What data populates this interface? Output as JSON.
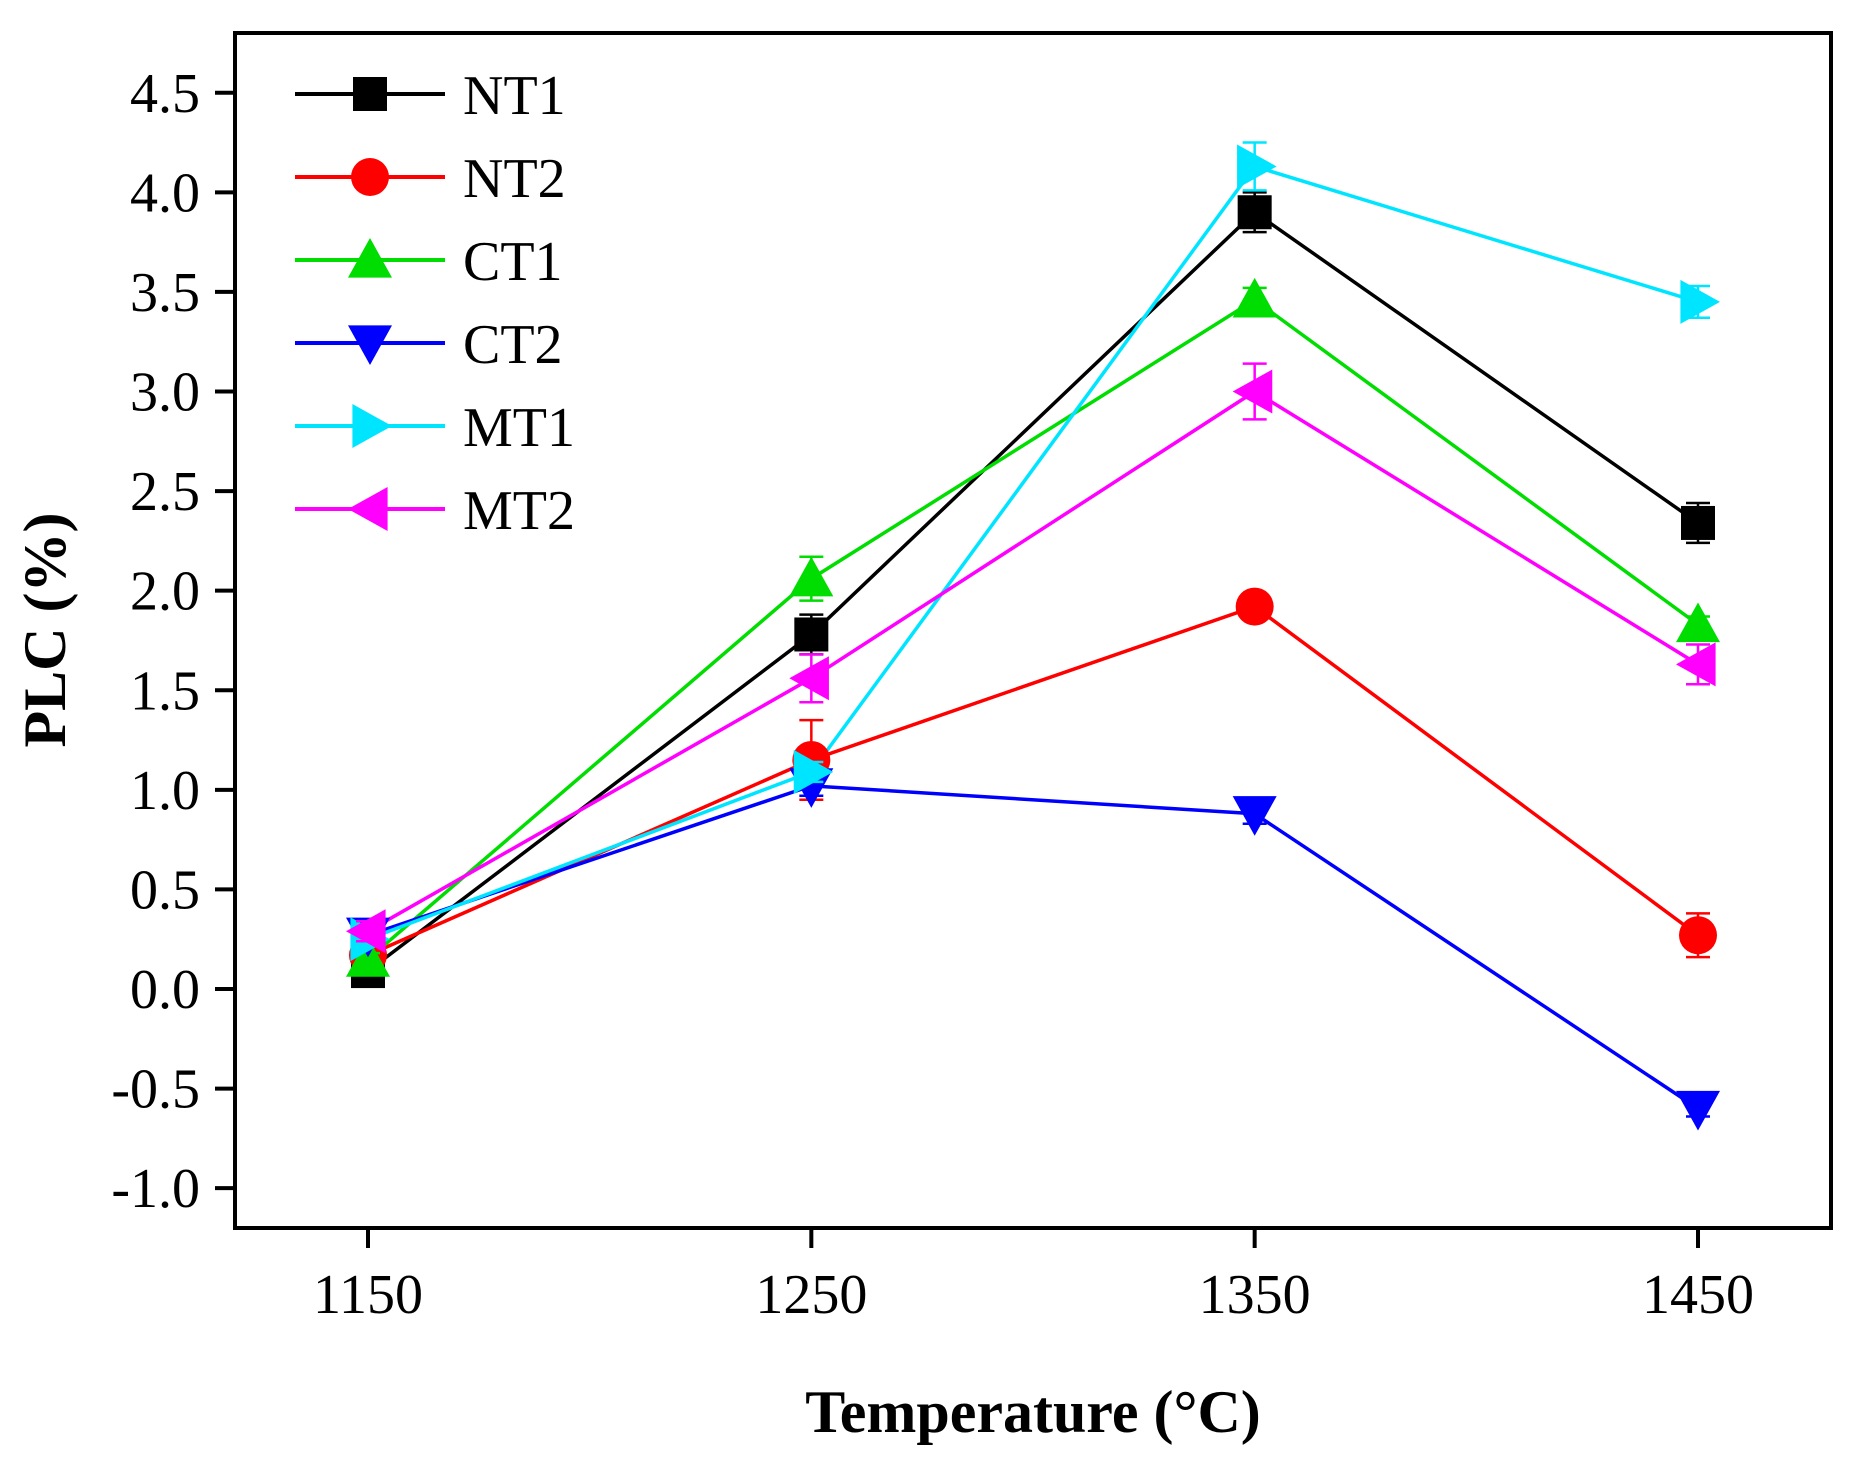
{
  "chart_data": {
    "type": "line",
    "title": "",
    "xlabel": "Temperature (°C)",
    "ylabel": "PLC (%)",
    "x": [
      1150,
      1250,
      1350,
      1450
    ],
    "xlim": [
      1120,
      1480
    ],
    "ylim": [
      -1.2,
      4.8
    ],
    "xticks": [
      "1150",
      "1250",
      "1350",
      "1450"
    ],
    "yticks": [
      "-1.0",
      "-0.5",
      "0.0",
      "0.5",
      "1.0",
      "1.5",
      "2.0",
      "2.5",
      "3.0",
      "3.5",
      "4.0",
      "4.5"
    ],
    "legend_position": "top-left",
    "grid": false,
    "series": [
      {
        "name": "NT1",
        "color": "#000000",
        "marker": "square",
        "values": [
          0.09,
          1.78,
          3.9,
          2.34
        ],
        "errors": [
          0.03,
          0.1,
          0.1,
          0.1
        ]
      },
      {
        "name": "NT2",
        "color": "#ff0000",
        "marker": "circle",
        "values": [
          0.17,
          1.15,
          1.92,
          0.27
        ],
        "errors": [
          0.03,
          0.2,
          0.03,
          0.11
        ]
      },
      {
        "name": "CT1",
        "color": "#00dd00",
        "marker": "triangle-up",
        "values": [
          0.15,
          2.06,
          3.46,
          1.83
        ],
        "errors": [
          0.03,
          0.11,
          0.06,
          0.04
        ]
      },
      {
        "name": "CT2",
        "color": "#0000ff",
        "marker": "triangle-down",
        "values": [
          0.27,
          1.02,
          0.88,
          -0.6
        ],
        "errors": [
          0.03,
          0.05,
          0.05,
          0.04
        ]
      },
      {
        "name": "MT1",
        "color": "#00e5ff",
        "marker": "triangle-right",
        "values": [
          0.25,
          1.09,
          4.13,
          3.45
        ],
        "errors": [
          0.03,
          0.05,
          0.12,
          0.08
        ]
      },
      {
        "name": "MT2",
        "color": "#ff00ff",
        "marker": "triangle-left",
        "values": [
          0.29,
          1.56,
          3.0,
          1.63
        ],
        "errors": [
          0.05,
          0.12,
          0.14,
          0.1
        ]
      }
    ]
  }
}
